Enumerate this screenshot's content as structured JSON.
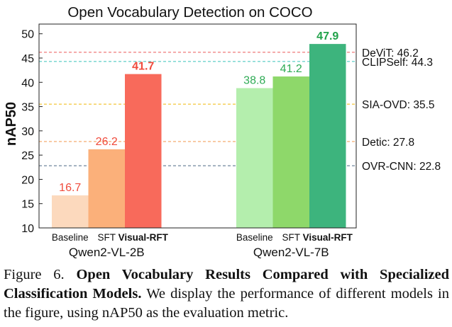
{
  "chart_data": {
    "type": "bar",
    "title": "Open Vocabulary Detection on COCO",
    "ylabel": "nAP50",
    "ylim": [
      10,
      52
    ],
    "yticks": [
      10,
      15,
      20,
      25,
      30,
      35,
      40,
      45,
      50
    ],
    "groups": [
      {
        "name": "Qwen2-VL-2B",
        "bars": [
          {
            "label": "Baseline",
            "value": 16.7,
            "value_label": "16.7",
            "color": "#fcd9bd",
            "label_color": "#f04b3c",
            "bold": false
          },
          {
            "label": "SFT",
            "value": 26.2,
            "value_label": "26.2",
            "color": "#fbb07a",
            "label_color": "#f04b3c",
            "bold": false
          },
          {
            "label": "Visual-RFT",
            "value": 41.7,
            "value_label": "41.7",
            "color": "#f86a5b",
            "label_color": "#f04b3c",
            "bold": true
          }
        ]
      },
      {
        "name": "Qwen2-VL-7B",
        "bars": [
          {
            "label": "Baseline",
            "value": 38.8,
            "value_label": "38.8",
            "color": "#b4eead",
            "label_color": "#2fab55",
            "bold": false
          },
          {
            "label": "SFT",
            "value": 41.2,
            "value_label": "41.2",
            "color": "#8ed86a",
            "label_color": "#2fab55",
            "bold": false
          },
          {
            "label": "Visual-RFT",
            "value": 47.9,
            "value_label": "47.9",
            "color": "#3db47d",
            "label_color": "#21a24a",
            "bold": true
          }
        ]
      }
    ],
    "reference_lines": [
      {
        "label": "DeViT: 46.2",
        "value": 46.2,
        "color": "#f08585"
      },
      {
        "label": "CLIPSelf: 44.3",
        "value": 44.3,
        "color": "#6fd3cc"
      },
      {
        "label": "SIA-OVD: 35.5",
        "value": 35.5,
        "color": "#f4cb4b"
      },
      {
        "label": "Detic: 27.8",
        "value": 27.8,
        "color": "#f5b47d"
      },
      {
        "label": "OVR-CNN: 22.8",
        "value": 22.8,
        "color": "#7c91a6"
      }
    ]
  },
  "caption": {
    "figure_label": "Figure 6.",
    "title": "Open Vocabulary Results Compared with Specialized Classification Models.",
    "body": "We display the performance of different models in the figure, using nAP50 as the evaluation metric."
  }
}
